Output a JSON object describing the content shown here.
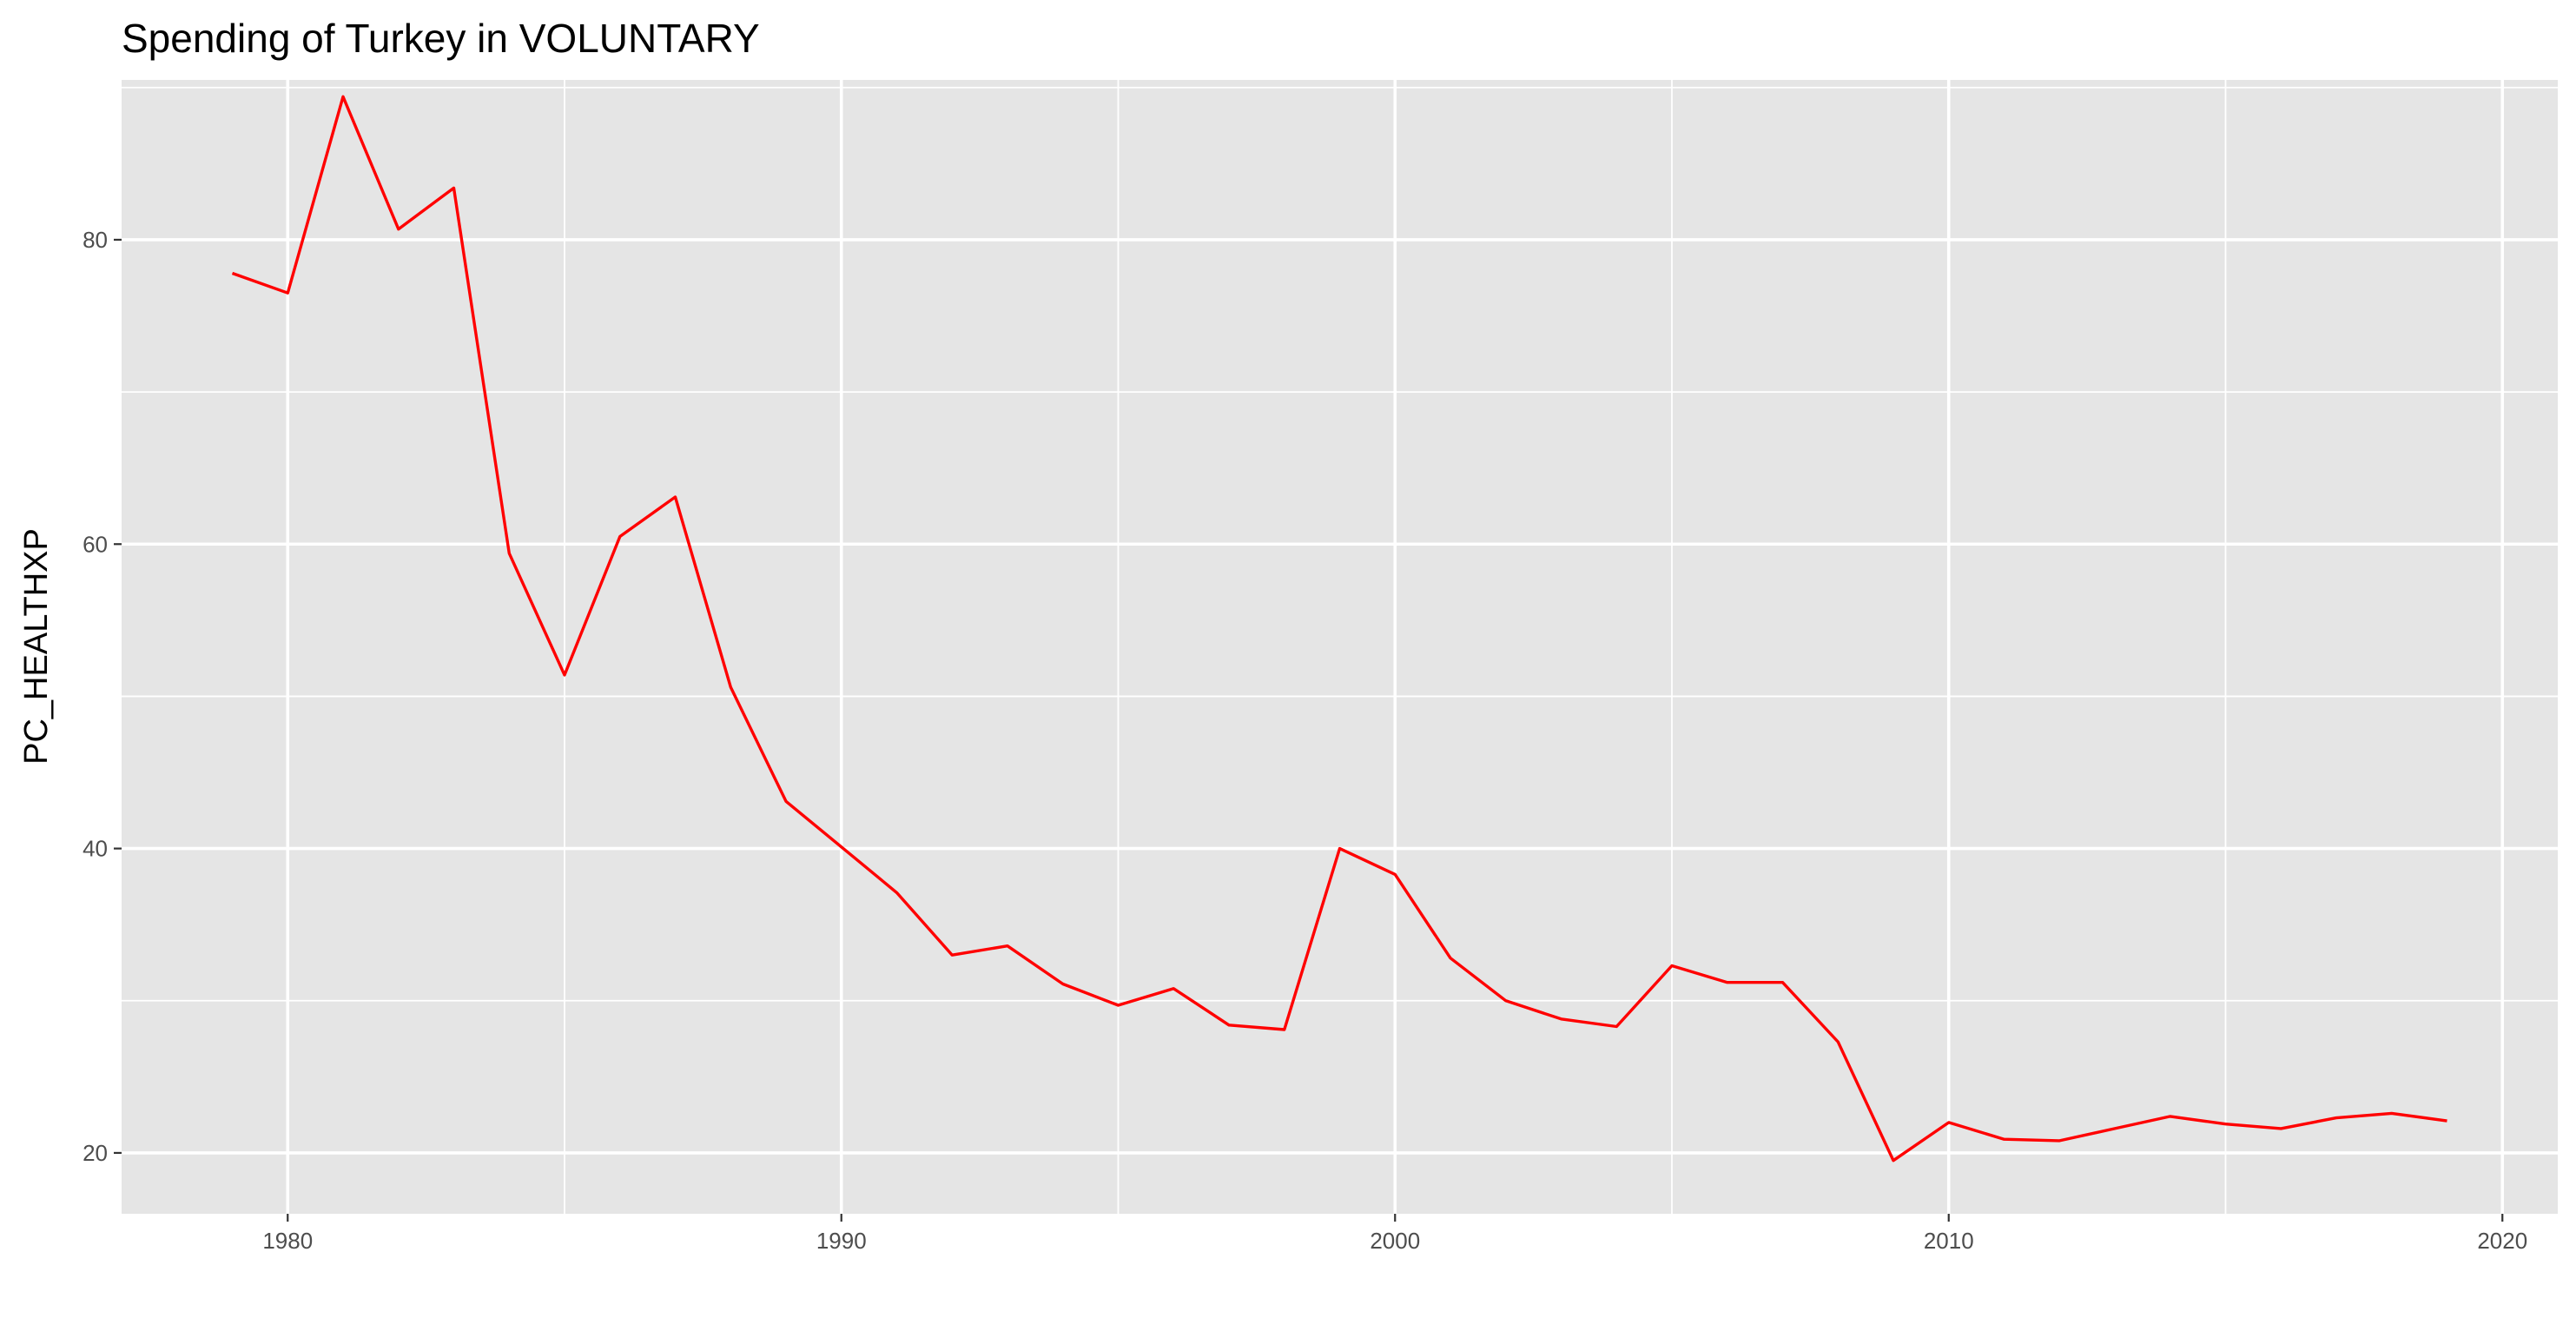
{
  "chart_data": {
    "type": "line",
    "title": "Spending of Turkey in VOLUNTARY",
    "xlabel": "",
    "ylabel": "PC_HEALTHXP",
    "xlim": [
      1977.0,
      2021.0
    ],
    "ylim": [
      16.0,
      90.5
    ],
    "x_ticks": [
      1980,
      1990,
      2000,
      2010,
      2020
    ],
    "y_ticks": [
      20,
      40,
      60,
      80
    ],
    "x_minor": [
      1985,
      1995,
      2005,
      2015
    ],
    "y_minor": [
      30,
      50,
      70,
      90
    ],
    "grid": true,
    "legend": "none",
    "colors": {
      "panel": "#e5e5e5",
      "grid": "#ffffff",
      "line": "#ff0000",
      "tick_text": "#4d4d4d",
      "tick_mark": "#333333",
      "title_text": "#000000"
    },
    "series": [
      {
        "color": "#ff0000",
        "x": [
          1979,
          1980,
          1981,
          1982,
          1983,
          1984,
          1985,
          1986,
          1987,
          1988,
          1989,
          1990,
          1991,
          1992,
          1993,
          1994,
          1995,
          1996,
          1997,
          1998,
          1999,
          2000,
          2001,
          2002,
          2003,
          2004,
          2005,
          2006,
          2007,
          2008,
          2009,
          2010,
          2011,
          2012,
          2013,
          2014,
          2015,
          2016,
          2017,
          2018,
          2019
        ],
        "y": [
          77.8,
          76.5,
          89.4,
          80.7,
          83.4,
          59.4,
          51.4,
          60.5,
          63.1,
          50.6,
          43.1,
          40.1,
          37.1,
          33.0,
          33.6,
          31.1,
          29.7,
          30.8,
          28.4,
          28.1,
          40.0,
          38.3,
          32.8,
          30.0,
          28.8,
          28.3,
          32.3,
          31.2,
          31.2,
          27.3,
          19.5,
          22.0,
          20.9,
          20.8,
          21.6,
          22.4,
          21.9,
          21.6,
          22.3,
          22.6,
          22.1
        ]
      }
    ]
  }
}
